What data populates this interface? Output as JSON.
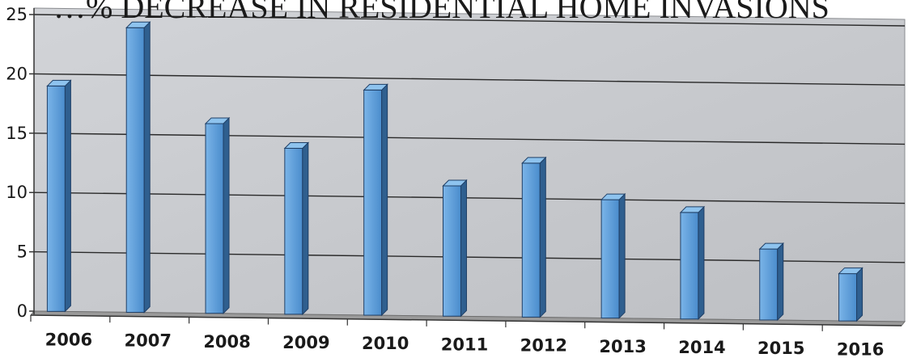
{
  "chart_data": {
    "type": "bar",
    "title": "…% DECREASE IN RESIDENTIAL HOME INVASIONS",
    "xlabel": "",
    "ylabel": "",
    "categories": [
      "2006",
      "2007",
      "2008",
      "2009",
      "2010",
      "2011",
      "2012",
      "2013",
      "2014",
      "2015",
      "2016"
    ],
    "values": [
      19,
      24,
      16,
      14,
      19,
      11,
      13,
      10,
      9,
      6,
      4
    ],
    "ylim": [
      0,
      25
    ],
    "yticks": [
      "0",
      "5",
      "10",
      "15",
      "20",
      "25"
    ],
    "grid": true,
    "legend": "none",
    "colors": {
      "bar_front": "#5b9bd5",
      "bar_side": "#2f5f8f",
      "bar_top": "#8ec3ee",
      "bar_edge": "#1f3f66",
      "plot_wall": "#c8cace",
      "floor": "#9a9a9a",
      "gridline": "#2a2a2a"
    }
  }
}
